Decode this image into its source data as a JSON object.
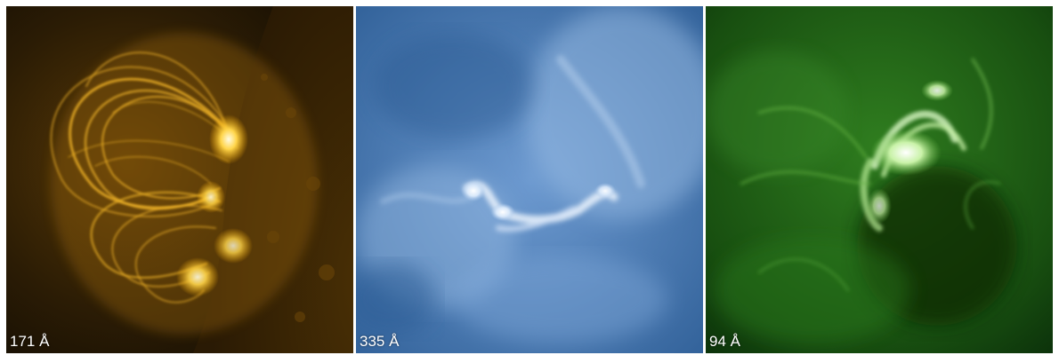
{
  "panels": [
    {
      "wavelength_label": "171 Å",
      "palette": {
        "dark": "#1a1205",
        "mid": "#8a5a08",
        "bright": "#ffd24a",
        "glow": "#fff6c8"
      }
    },
    {
      "wavelength_label": "335 Å",
      "palette": {
        "dark": "#2a5b95",
        "mid": "#5f8fc7",
        "bright": "#c9def4",
        "glow": "#ffffff"
      }
    },
    {
      "wavelength_label": "94 Å",
      "palette": {
        "dark": "#0d3d0a",
        "mid": "#2e7a1c",
        "bright": "#9fe07a",
        "glow": "#f4ffe8"
      }
    }
  ]
}
